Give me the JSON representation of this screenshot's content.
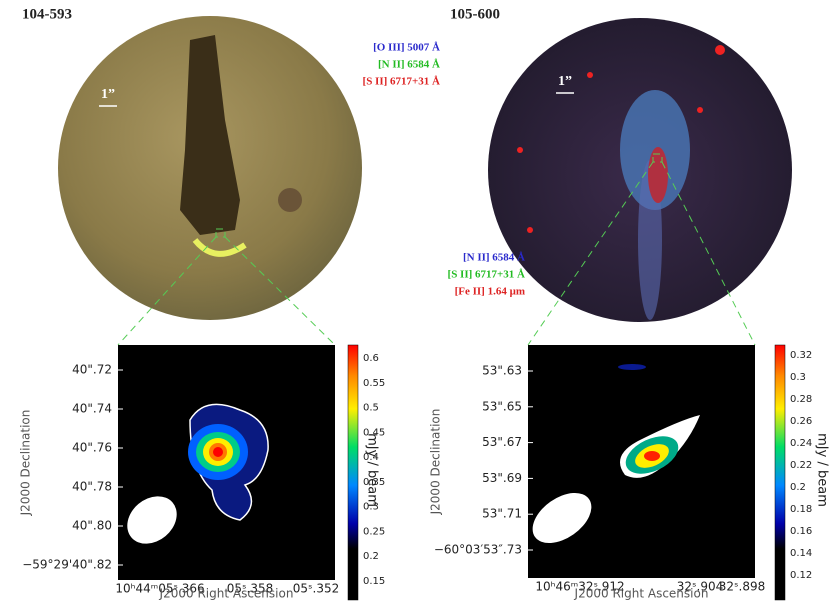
{
  "panels": [
    {
      "title": "104-593",
      "scale_label": "1”",
      "filters": [
        {
          "text": "[O III] 5007 Å",
          "color": "#2a2acc"
        },
        {
          "text": "[N II] 6584 Å",
          "color": "#22bb22"
        },
        {
          "text": "[S II] 6717+31 Å",
          "color": "#dd2222"
        }
      ],
      "plot": {
        "y_label": "J2000 Declination",
        "x_label": "J2000 Right Ascension",
        "colorbar_label": "mJy / beam",
        "y_ticks": [
          "40\".72",
          "40\".74",
          "40\".76",
          "40\".78",
          "40\".80",
          "−59°29'40\".82"
        ],
        "x_ticks": [
          "10ʰ44ᵐ05ˢ.366",
          "05ˢ.358",
          "05ˢ.352"
        ],
        "colorbar_ticks": [
          "0.6",
          "0.55",
          "0.5",
          "0.45",
          "0.4",
          "0.35",
          "0.3",
          "0.25",
          "0.2",
          "0.15"
        ]
      }
    },
    {
      "title": "105-600",
      "scale_label": "1”",
      "filters": [
        {
          "text": "[N II] 6584 Å",
          "color": "#2a2acc"
        },
        {
          "text": "[S II] 6717+31 Å",
          "color": "#22bb22"
        },
        {
          "text": "[Fe II] 1.64 μm",
          "color": "#dd2222"
        }
      ],
      "plot": {
        "y_label": "J2000 Declination",
        "x_label": "J2000 Right Ascension",
        "colorbar_label": "mJy / beam",
        "y_ticks": [
          "53\".63",
          "53\".65",
          "53\".67",
          "53\".69",
          "53\".71",
          "−60°03′53″.73"
        ],
        "x_ticks": [
          "10ʰ46ᵐ32ˢ.912",
          "32ˢ.904",
          "32ˢ.898"
        ],
        "colorbar_ticks": [
          "0.32",
          "0.3",
          "0.28",
          "0.26",
          "0.24",
          "0.22",
          "0.2",
          "0.18",
          "0.16",
          "0.14",
          "0.12"
        ]
      }
    }
  ]
}
